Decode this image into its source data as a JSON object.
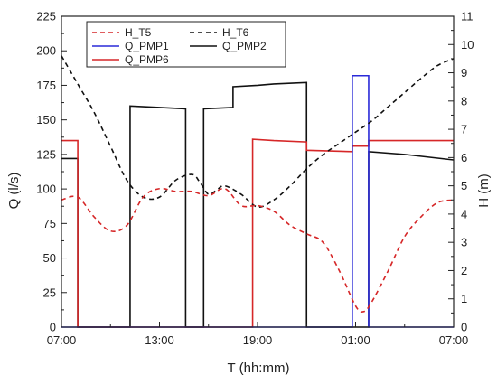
{
  "chart_data": {
    "type": "line",
    "xlabel": "T (hh:mm)",
    "ylabel_left": "Q (l/s)",
    "ylabel_right": "H (m)",
    "x_unit": "hours elapsed since 07:00 (axis spans 24 h)",
    "xlim": [
      0,
      24
    ],
    "ylim_left": [
      0,
      225
    ],
    "ylim_right": [
      0,
      11
    ],
    "x_ticks": [
      {
        "x": 0,
        "label": "07:00"
      },
      {
        "x": 6,
        "label": "13:00"
      },
      {
        "x": 12,
        "label": "19:00"
      },
      {
        "x": 18,
        "label": "01:00"
      },
      {
        "x": 24,
        "label": "07:00"
      }
    ],
    "y_ticks_left": [
      0,
      25,
      50,
      75,
      100,
      125,
      150,
      175,
      200,
      225
    ],
    "y_ticks_right": [
      0,
      1,
      2,
      3,
      4,
      5,
      6,
      7,
      8,
      9,
      10,
      11
    ],
    "legend": {
      "placement": "top-left",
      "entries": [
        "H_T5",
        "H_T6",
        "Q_PMP1",
        "Q_PMP2",
        "Q_PMP6"
      ]
    },
    "series": [
      {
        "name": "H_T5",
        "axis": "right",
        "style": "dashed",
        "color": "#d62728",
        "points": [
          [
            0,
            4.5
          ],
          [
            1,
            4.6
          ],
          [
            2,
            3.9
          ],
          [
            3,
            3.4
          ],
          [
            4,
            3.6
          ],
          [
            5,
            4.6
          ],
          [
            6,
            4.9
          ],
          [
            7,
            4.8
          ],
          [
            8,
            4.8
          ],
          [
            9,
            4.65
          ],
          [
            10,
            4.9
          ],
          [
            11,
            4.3
          ],
          [
            12,
            4.3
          ],
          [
            13,
            4.1
          ],
          [
            14,
            3.6
          ],
          [
            15,
            3.3
          ],
          [
            16,
            3.0
          ],
          [
            17,
            2.0
          ],
          [
            18,
            0.75
          ],
          [
            18.5,
            0.55
          ],
          [
            19,
            0.9
          ],
          [
            20,
            2.0
          ],
          [
            21,
            3.2
          ],
          [
            22,
            3.9
          ],
          [
            23,
            4.4
          ],
          [
            24,
            4.5
          ]
        ]
      },
      {
        "name": "H_T6",
        "axis": "right",
        "style": "dashed",
        "color": "#111111",
        "points": [
          [
            0,
            9.6
          ],
          [
            1,
            8.6
          ],
          [
            2,
            7.6
          ],
          [
            3,
            6.4
          ],
          [
            4,
            5.2
          ],
          [
            5,
            4.6
          ],
          [
            6,
            4.6
          ],
          [
            7,
            5.2
          ],
          [
            8,
            5.4
          ],
          [
            8.5,
            5.1
          ],
          [
            9,
            4.7
          ],
          [
            9.5,
            4.85
          ],
          [
            10,
            5.0
          ],
          [
            11,
            4.7
          ],
          [
            12,
            4.25
          ],
          [
            13,
            4.5
          ],
          [
            14,
            5.0
          ],
          [
            15,
            5.6
          ],
          [
            16,
            6.1
          ],
          [
            17,
            6.5
          ],
          [
            18,
            6.9
          ],
          [
            19,
            7.3
          ],
          [
            20,
            7.8
          ],
          [
            21,
            8.3
          ],
          [
            22,
            8.8
          ],
          [
            23,
            9.25
          ],
          [
            24,
            9.5
          ]
        ]
      },
      {
        "name": "Q_PMP1",
        "axis": "left",
        "style": "solid",
        "color": "#2a2ad8",
        "points": [
          [
            0,
            0
          ],
          [
            17.8,
            0
          ],
          [
            17.8,
            182
          ],
          [
            18.8,
            182
          ],
          [
            18.8,
            0
          ],
          [
            24,
            0
          ]
        ]
      },
      {
        "name": "Q_PMP2",
        "axis": "left",
        "style": "solid",
        "color": "#111111",
        "points": [
          [
            0,
            122
          ],
          [
            1,
            122
          ],
          [
            1,
            0
          ],
          [
            4.2,
            0
          ],
          [
            4.2,
            160
          ],
          [
            6,
            159
          ],
          [
            7.6,
            158
          ],
          [
            7.6,
            0
          ],
          [
            8.7,
            0
          ],
          [
            8.7,
            158
          ],
          [
            10.5,
            159
          ],
          [
            10.5,
            174
          ],
          [
            12,
            175
          ],
          [
            13,
            176
          ],
          [
            15,
            177
          ],
          [
            15,
            0
          ],
          [
            18.8,
            0
          ],
          [
            18.8,
            127
          ],
          [
            21,
            125
          ],
          [
            24,
            121
          ]
        ]
      },
      {
        "name": "Q_PMP6",
        "axis": "left",
        "style": "solid",
        "color": "#d62728",
        "points": [
          [
            0,
            135
          ],
          [
            1,
            135
          ],
          [
            1,
            0
          ],
          [
            11.7,
            0
          ],
          [
            11.7,
            136
          ],
          [
            13,
            135
          ],
          [
            15,
            134
          ],
          [
            15,
            128
          ],
          [
            17.8,
            127
          ],
          [
            17.8,
            131
          ],
          [
            18.8,
            131
          ],
          [
            18.8,
            135
          ],
          [
            21,
            135
          ],
          [
            24,
            135
          ]
        ]
      }
    ]
  }
}
